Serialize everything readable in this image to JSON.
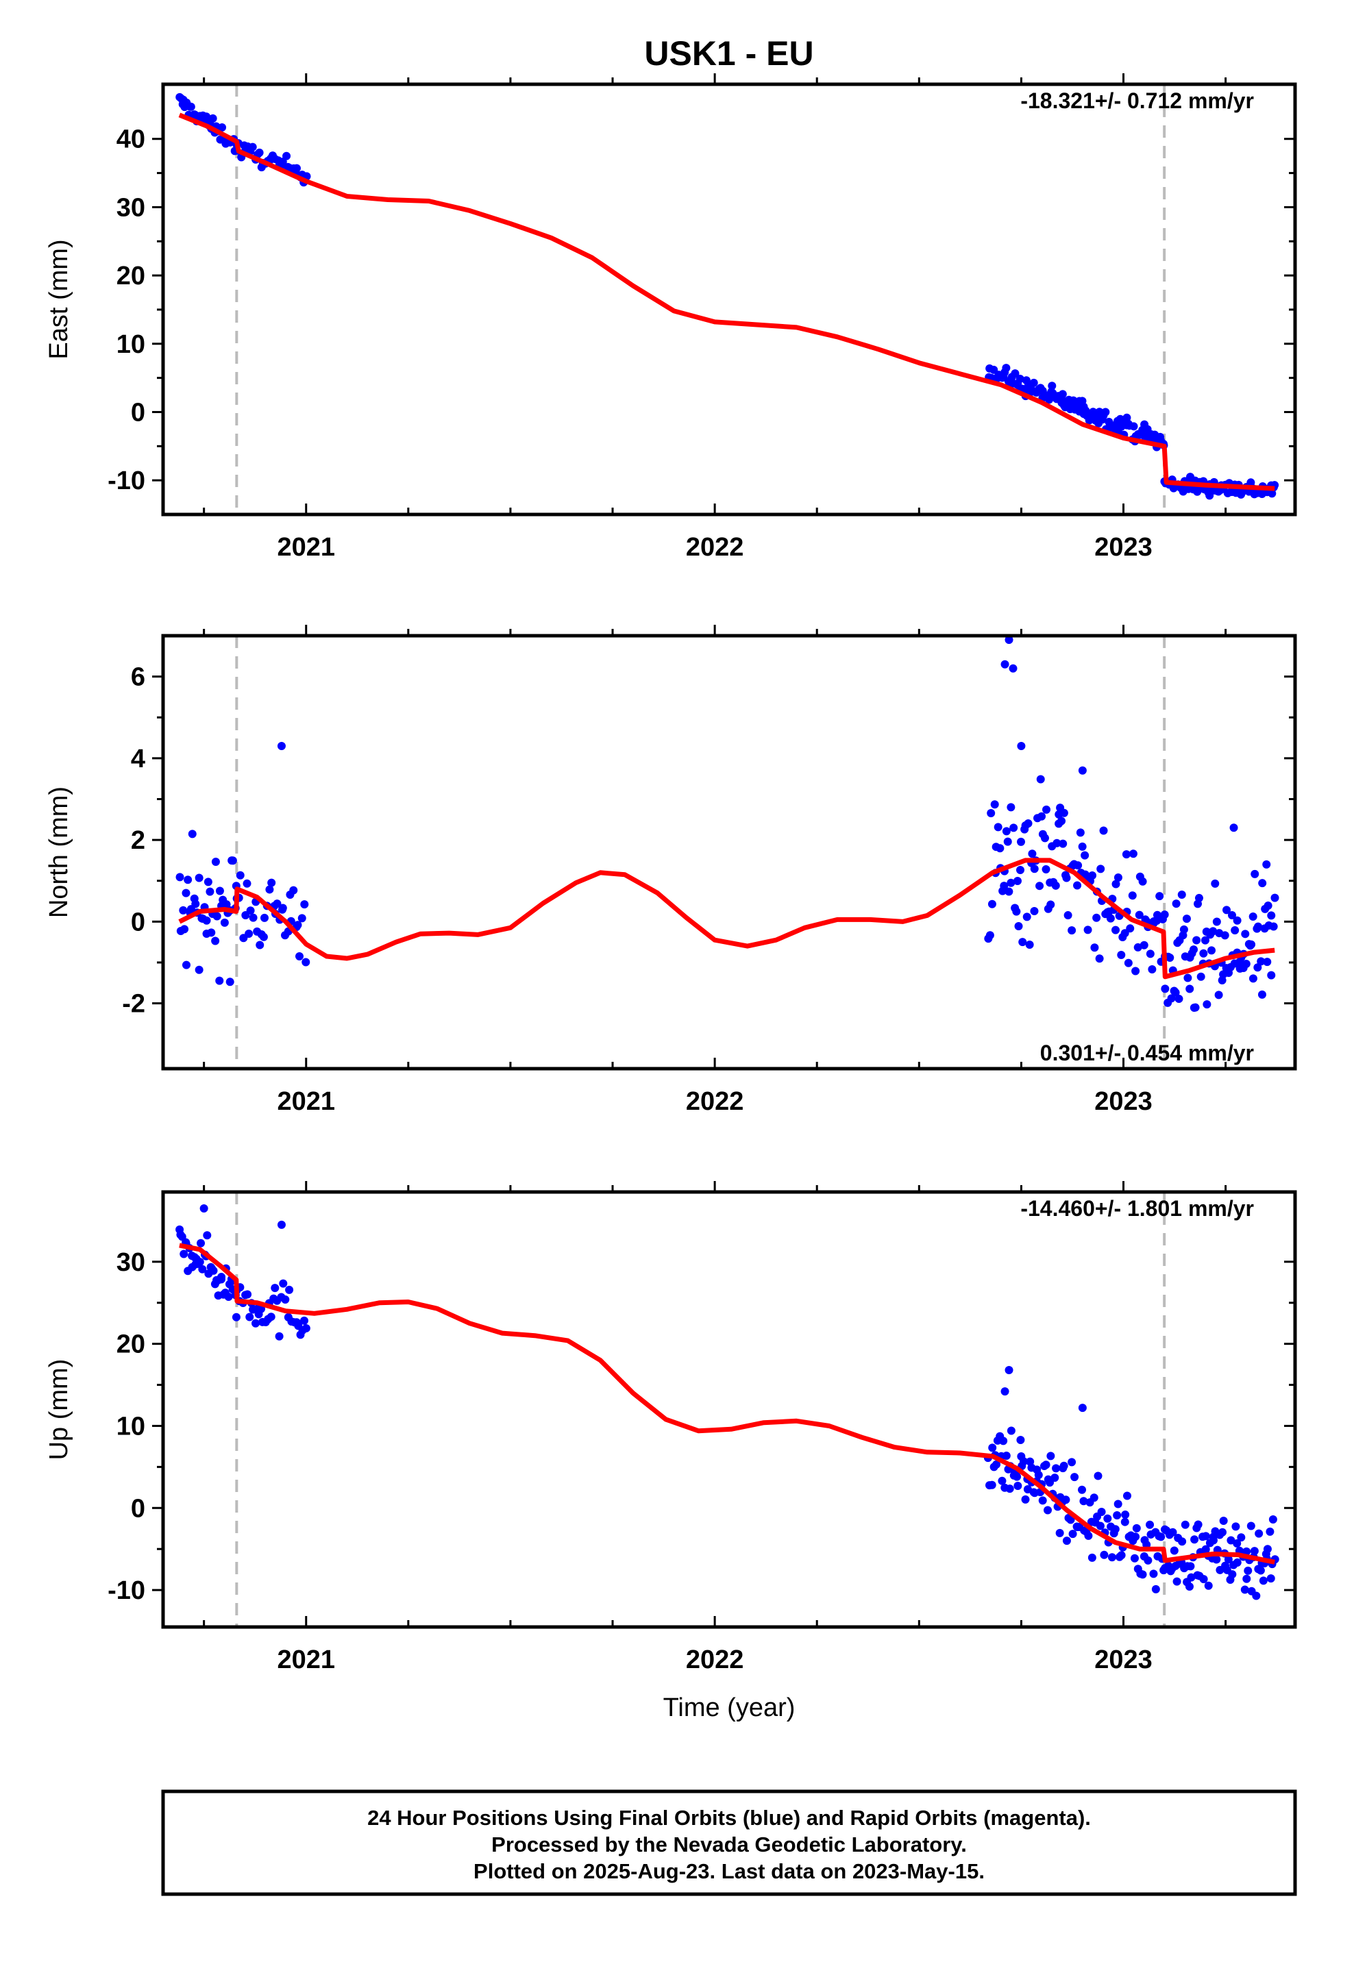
{
  "title": "USK1 - EU",
  "xlabel": "Time (year)",
  "footer": {
    "line1": "24 Hour Positions Using Final Orbits (blue) and Rapid Orbits (magenta).",
    "line2": "Processed by the Nevada Geodetic Laboratory.",
    "line3": "Plotted on 2025-Aug-23. Last data on 2023-May-15."
  },
  "colors": {
    "data": "#0000ff",
    "model": "#ff0000",
    "breaks": "#bbbbbb",
    "frame": "#000000"
  },
  "chart_data": [
    {
      "type": "scatter",
      "name": "east",
      "ylabel": "East (mm)",
      "rate_text": "-18.321+/- 0.712 mm/yr",
      "rate_position": "top-right",
      "xlim": [
        2020.65,
        2023.42
      ],
      "ylim": [
        -15,
        48
      ],
      "yticks": [
        40,
        30,
        20,
        10,
        0,
        -10
      ],
      "xticks": [
        2021,
        2022,
        2023
      ],
      "breaks": [
        2020.83,
        2023.1
      ],
      "data_segments": [
        {
          "x0": 2020.69,
          "x1": 2020.83,
          "y0": 45.5,
          "y1": 39.0,
          "noise": 2.0,
          "n": 40
        },
        {
          "x0": 2020.83,
          "x1": 2021.0,
          "y0": 38.5,
          "y1": 35.0,
          "noise": 2.2,
          "n": 35
        },
        {
          "x0": 2022.67,
          "x1": 2023.1,
          "y0": 6.0,
          "y1": -4.5,
          "noise": 2.4,
          "n": 120
        },
        {
          "x0": 2023.1,
          "x1": 2023.37,
          "y0": -10.5,
          "y1": -11.5,
          "noise": 2.0,
          "n": 85
        }
      ],
      "model": [
        [
          2020.69,
          43.5
        ],
        [
          2020.76,
          41.8
        ],
        [
          2020.83,
          39.6
        ],
        [
          2020.835,
          38.2
        ],
        [
          2020.9,
          36.5
        ],
        [
          2021.0,
          33.8
        ],
        [
          2021.1,
          31.6
        ],
        [
          2021.2,
          31.1
        ],
        [
          2021.3,
          30.9
        ],
        [
          2021.4,
          29.5
        ],
        [
          2021.5,
          27.6
        ],
        [
          2021.6,
          25.5
        ],
        [
          2021.7,
          22.6
        ],
        [
          2021.8,
          18.5
        ],
        [
          2021.9,
          14.8
        ],
        [
          2022.0,
          13.2
        ],
        [
          2022.1,
          12.8
        ],
        [
          2022.2,
          12.4
        ],
        [
          2022.3,
          11.0
        ],
        [
          2022.4,
          9.2
        ],
        [
          2022.5,
          7.2
        ],
        [
          2022.6,
          5.6
        ],
        [
          2022.7,
          4.0
        ],
        [
          2022.8,
          1.4
        ],
        [
          2022.9,
          -1.8
        ],
        [
          2023.0,
          -3.8
        ],
        [
          2023.1,
          -5.0
        ],
        [
          2023.105,
          -10.3
        ],
        [
          2023.2,
          -10.7
        ],
        [
          2023.3,
          -11.0
        ],
        [
          2023.37,
          -11.2
        ]
      ]
    },
    {
      "type": "scatter",
      "name": "north",
      "ylabel": "North (mm)",
      "rate_text": "0.301+/- 0.454 mm/yr",
      "rate_position": "bottom-right",
      "xlim": [
        2020.65,
        2023.42
      ],
      "ylim": [
        -3.6,
        7.0
      ],
      "yticks": [
        6,
        4,
        2,
        0,
        -2
      ],
      "xticks": [
        2021,
        2022,
        2023
      ],
      "breaks": [
        2020.83,
        2023.1
      ],
      "data_segments": [
        {
          "x0": 2020.69,
          "x1": 2020.83,
          "y0": 0.3,
          "y1": 0.3,
          "noise": 2.4,
          "n": 40
        },
        {
          "x0": 2020.83,
          "x1": 2021.0,
          "y0": 0.5,
          "y1": 0.0,
          "noise": 2.0,
          "n": 35
        },
        {
          "x0": 2022.67,
          "x1": 2022.85,
          "y0": 1.0,
          "y1": 2.0,
          "noise": 3.4,
          "n": 55
        },
        {
          "x0": 2022.85,
          "x1": 2023.1,
          "y0": 1.2,
          "y1": -0.4,
          "noise": 2.6,
          "n": 65
        },
        {
          "x0": 2023.1,
          "x1": 2023.37,
          "y0": -1.2,
          "y1": -0.6,
          "noise": 2.6,
          "n": 85
        }
      ],
      "model": [
        [
          2020.69,
          0.0
        ],
        [
          2020.74,
          0.25
        ],
        [
          2020.8,
          0.3
        ],
        [
          2020.829,
          0.25
        ],
        [
          2020.831,
          0.8
        ],
        [
          2020.88,
          0.6
        ],
        [
          2020.95,
          0.0
        ],
        [
          2021.0,
          -0.55
        ],
        [
          2021.05,
          -0.85
        ],
        [
          2021.1,
          -0.9
        ],
        [
          2021.15,
          -0.8
        ],
        [
          2021.22,
          -0.5
        ],
        [
          2021.28,
          -0.3
        ],
        [
          2021.35,
          -0.28
        ],
        [
          2021.42,
          -0.32
        ],
        [
          2021.5,
          -0.15
        ],
        [
          2021.58,
          0.45
        ],
        [
          2021.66,
          0.95
        ],
        [
          2021.72,
          1.2
        ],
        [
          2021.78,
          1.15
        ],
        [
          2021.86,
          0.7
        ],
        [
          2021.93,
          0.1
        ],
        [
          2022.0,
          -0.45
        ],
        [
          2022.08,
          -0.6
        ],
        [
          2022.15,
          -0.45
        ],
        [
          2022.22,
          -0.15
        ],
        [
          2022.3,
          0.05
        ],
        [
          2022.38,
          0.05
        ],
        [
          2022.46,
          0.0
        ],
        [
          2022.52,
          0.15
        ],
        [
          2022.6,
          0.65
        ],
        [
          2022.68,
          1.2
        ],
        [
          2022.76,
          1.5
        ],
        [
          2022.82,
          1.5
        ],
        [
          2022.88,
          1.2
        ],
        [
          2022.95,
          0.6
        ],
        [
          2023.02,
          0.05
        ],
        [
          2023.098,
          -0.25
        ],
        [
          2023.102,
          -1.35
        ],
        [
          2023.16,
          -1.2
        ],
        [
          2023.25,
          -0.9
        ],
        [
          2023.32,
          -0.75
        ],
        [
          2023.37,
          -0.7
        ]
      ],
      "outliers": [
        [
          2020.94,
          4.3
        ],
        [
          2022.72,
          6.9
        ],
        [
          2022.71,
          6.3
        ],
        [
          2022.73,
          6.2
        ],
        [
          2022.75,
          4.3
        ],
        [
          2022.9,
          3.7
        ],
        [
          2023.27,
          2.3
        ],
        [
          2023.35,
          1.4
        ]
      ]
    },
    {
      "type": "scatter",
      "name": "up",
      "ylabel": "Up (mm)",
      "rate_text": "-14.460+/- 1.801 mm/yr",
      "rate_position": "top-right",
      "xlim": [
        2020.65,
        2023.42
      ],
      "ylim": [
        -14.5,
        38.5
      ],
      "yticks": [
        30,
        20,
        10,
        0,
        -10
      ],
      "xticks": [
        2021,
        2022,
        2023
      ],
      "breaks": [
        2020.83,
        2023.1
      ],
      "data_segments": [
        {
          "x0": 2020.69,
          "x1": 2020.83,
          "y0": 33.0,
          "y1": 26.0,
          "noise": 5.0,
          "n": 40
        },
        {
          "x0": 2020.83,
          "x1": 2021.0,
          "y0": 26.0,
          "y1": 23.0,
          "noise": 6.0,
          "n": 35
        },
        {
          "x0": 2022.67,
          "x1": 2022.85,
          "y0": 6.5,
          "y1": 1.5,
          "noise": 7.0,
          "n": 55
        },
        {
          "x0": 2022.85,
          "x1": 2023.1,
          "y0": 0.5,
          "y1": -6.0,
          "noise": 8.0,
          "n": 65
        },
        {
          "x0": 2023.1,
          "x1": 2023.37,
          "y0": -5.5,
          "y1": -6.0,
          "noise": 7.0,
          "n": 85
        }
      ],
      "model": [
        [
          2020.69,
          32.0
        ],
        [
          2020.74,
          31.5
        ],
        [
          2020.79,
          29.5
        ],
        [
          2020.829,
          27.8
        ],
        [
          2020.831,
          25.2
        ],
        [
          2020.88,
          25.0
        ],
        [
          2020.95,
          24.0
        ],
        [
          2021.02,
          23.7
        ],
        [
          2021.1,
          24.2
        ],
        [
          2021.18,
          25.0
        ],
        [
          2021.25,
          25.1
        ],
        [
          2021.32,
          24.3
        ],
        [
          2021.4,
          22.5
        ],
        [
          2021.48,
          21.3
        ],
        [
          2021.56,
          21.0
        ],
        [
          2021.64,
          20.4
        ],
        [
          2021.72,
          18.0
        ],
        [
          2021.8,
          14.0
        ],
        [
          2021.88,
          10.8
        ],
        [
          2021.96,
          9.4
        ],
        [
          2022.04,
          9.6
        ],
        [
          2022.12,
          10.4
        ],
        [
          2022.2,
          10.6
        ],
        [
          2022.28,
          10.0
        ],
        [
          2022.36,
          8.6
        ],
        [
          2022.44,
          7.4
        ],
        [
          2022.52,
          6.8
        ],
        [
          2022.6,
          6.7
        ],
        [
          2022.68,
          6.3
        ],
        [
          2022.74,
          4.8
        ],
        [
          2022.8,
          2.5
        ],
        [
          2022.86,
          -0.2
        ],
        [
          2022.92,
          -2.5
        ],
        [
          2022.98,
          -4.2
        ],
        [
          2023.04,
          -5.0
        ],
        [
          2023.098,
          -5.0
        ],
        [
          2023.102,
          -6.4
        ],
        [
          2023.16,
          -6.0
        ],
        [
          2023.22,
          -5.6
        ],
        [
          2023.28,
          -5.7
        ],
        [
          2023.32,
          -6.1
        ],
        [
          2023.37,
          -6.6
        ]
      ],
      "outliers": [
        [
          2022.72,
          16.8
        ],
        [
          2022.71,
          14.2
        ],
        [
          2022.9,
          12.2
        ],
        [
          2020.94,
          34.5
        ],
        [
          2020.75,
          36.5
        ]
      ]
    }
  ]
}
